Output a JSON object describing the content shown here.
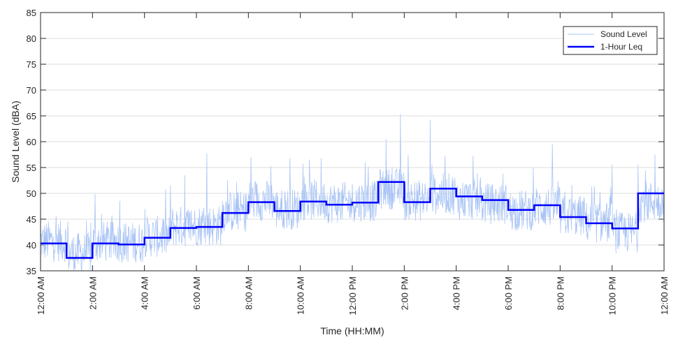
{
  "chart_data": {
    "type": "line",
    "title": "",
    "xlabel": "Time (HH:MM)",
    "ylabel": "Sound Level (dBA)",
    "xlim": [
      0,
      24
    ],
    "ylim": [
      35,
      85
    ],
    "grid": "horizontal",
    "legend_position": "top-right",
    "x_ticks": [
      {
        "x": 0,
        "label": "12:00 AM"
      },
      {
        "x": 2,
        "label": "2:00 AM"
      },
      {
        "x": 4,
        "label": "4:00 AM"
      },
      {
        "x": 6,
        "label": "6:00 AM"
      },
      {
        "x": 8,
        "label": "8:00 AM"
      },
      {
        "x": 10,
        "label": "10:00 AM"
      },
      {
        "x": 12,
        "label": "12:00 PM"
      },
      {
        "x": 14,
        "label": "2:00 PM"
      },
      {
        "x": 16,
        "label": "4:00 PM"
      },
      {
        "x": 18,
        "label": "6:00 PM"
      },
      {
        "x": 20,
        "label": "8:00 PM"
      },
      {
        "x": 22,
        "label": "10:00 PM"
      },
      {
        "x": 24,
        "label": "12:00 AM"
      }
    ],
    "y_ticks": [
      35,
      40,
      45,
      50,
      55,
      60,
      65,
      70,
      75,
      80,
      85
    ],
    "series": [
      {
        "name": "Sound Level",
        "color": "#a9c4f5",
        "style": "thin-line",
        "hourly_mean": [
          40.3,
          38.0,
          40.2,
          40.1,
          41.2,
          43.2,
          43.4,
          46.1,
          48.2,
          46.6,
          48.3,
          47.8,
          48.1,
          50.5,
          48.2,
          49.5,
          48.4,
          47.6,
          46.3,
          47.0,
          45.2,
          44.0,
          42.0,
          48.0
        ],
        "peaks": [
          {
            "x": 1.05,
            "y": 44.5
          },
          {
            "x": 2.1,
            "y": 49.8
          },
          {
            "x": 3.05,
            "y": 48.5
          },
          {
            "x": 5.0,
            "y": 51.5
          },
          {
            "x": 5.55,
            "y": 53.5
          },
          {
            "x": 6.4,
            "y": 57.7
          },
          {
            "x": 7.2,
            "y": 52.5
          },
          {
            "x": 8.1,
            "y": 57.0
          },
          {
            "x": 9.6,
            "y": 56.8
          },
          {
            "x": 10.8,
            "y": 56.8
          },
          {
            "x": 12.5,
            "y": 56.0
          },
          {
            "x": 13.3,
            "y": 60.5
          },
          {
            "x": 13.85,
            "y": 65.3
          },
          {
            "x": 15.0,
            "y": 64.2
          },
          {
            "x": 16.65,
            "y": 57.2
          },
          {
            "x": 19.7,
            "y": 59.5
          },
          {
            "x": 22.0,
            "y": 55.5
          },
          {
            "x": 23.65,
            "y": 57.5
          }
        ]
      },
      {
        "name": "1-Hour Leq",
        "color": "#0000ff",
        "style": "step",
        "x": [
          0,
          1,
          2,
          3,
          4,
          5,
          6,
          7,
          8,
          9,
          10,
          11,
          12,
          13,
          14,
          15,
          16,
          17,
          18,
          19,
          20,
          21,
          22,
          23
        ],
        "values": [
          40.3,
          37.5,
          40.3,
          40.1,
          41.4,
          43.3,
          43.5,
          46.2,
          48.3,
          46.6,
          48.4,
          47.8,
          48.2,
          52.2,
          48.3,
          50.9,
          49.4,
          48.7,
          46.8,
          47.7,
          45.4,
          44.2,
          43.2,
          50.0
        ]
      }
    ]
  }
}
